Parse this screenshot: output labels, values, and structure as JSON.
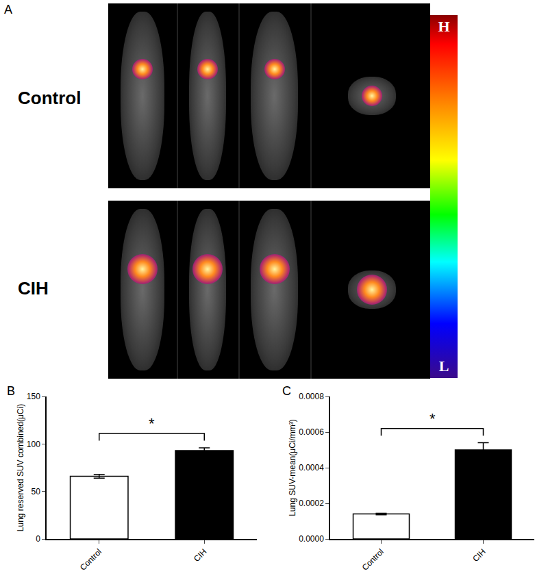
{
  "panel_a": {
    "panel_label": "A",
    "rows": [
      "Control",
      "CIH"
    ],
    "colorbar": {
      "high": "H",
      "low": "L"
    }
  },
  "chart_data": [
    {
      "type": "bar",
      "panel_label": "B",
      "y_label": "Lung reserved SUV combined(μCi)",
      "categories": [
        "Control",
        "CIH"
      ],
      "values": [
        66,
        93
      ],
      "errors": [
        2,
        3
      ],
      "colors": [
        "#ffffff",
        "#000000"
      ],
      "ylim": [
        0,
        150
      ],
      "yticks": [
        0,
        50,
        100,
        150
      ],
      "annotations": [
        "*"
      ],
      "grid": false
    },
    {
      "type": "bar",
      "panel_label": "C",
      "y_label": "Lung SUV-mean(μCi/mm³)",
      "categories": [
        "Control",
        "CIH"
      ],
      "values": [
        0.00014,
        0.0005
      ],
      "errors": [
        4e-06,
        4e-05
      ],
      "colors": [
        "#ffffff",
        "#000000"
      ],
      "ylim": [
        0,
        0.0008
      ],
      "yticks": [
        {
          "value": 0,
          "label": "0.0000"
        },
        {
          "value": 0.0002,
          "label": "0.0002"
        },
        {
          "value": 0.0004,
          "label": "0.0004"
        },
        {
          "value": 0.0006,
          "label": "0.0006"
        },
        {
          "value": 0.0008,
          "label": "0.0008"
        }
      ],
      "annotations": [
        "*"
      ],
      "grid": false
    }
  ]
}
